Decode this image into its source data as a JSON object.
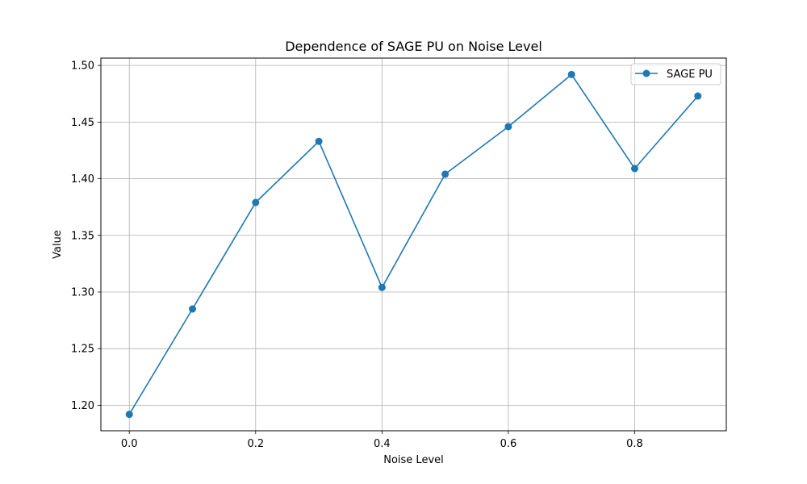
{
  "chart_data": {
    "type": "line",
    "title": "Dependence of SAGE PU on Noise Level",
    "xlabel": "Noise Level",
    "ylabel": "Value",
    "xlim": [
      -0.045,
      0.945
    ],
    "ylim": [
      1.1775,
      1.5065
    ],
    "xticks": [
      0.0,
      0.2,
      0.4,
      0.6,
      0.8
    ],
    "xtick_labels": [
      "0.0",
      "0.2",
      "0.4",
      "0.6",
      "0.8"
    ],
    "yticks": [
      1.2,
      1.25,
      1.3,
      1.35,
      1.4,
      1.45,
      1.5
    ],
    "ytick_labels": [
      "1.20",
      "1.25",
      "1.30",
      "1.35",
      "1.40",
      "1.45",
      "1.50"
    ],
    "grid": true,
    "legend": "top-right",
    "x": [
      0.0,
      0.1,
      0.2,
      0.3,
      0.4,
      0.5,
      0.6,
      0.7,
      0.8,
      0.9
    ],
    "series": [
      {
        "name": "SAGE PU",
        "color": "#1f77b4",
        "marker": "circle",
        "values": [
          1.192,
          1.285,
          1.379,
          1.433,
          1.304,
          1.404,
          1.446,
          1.492,
          1.409,
          1.473
        ]
      }
    ]
  }
}
